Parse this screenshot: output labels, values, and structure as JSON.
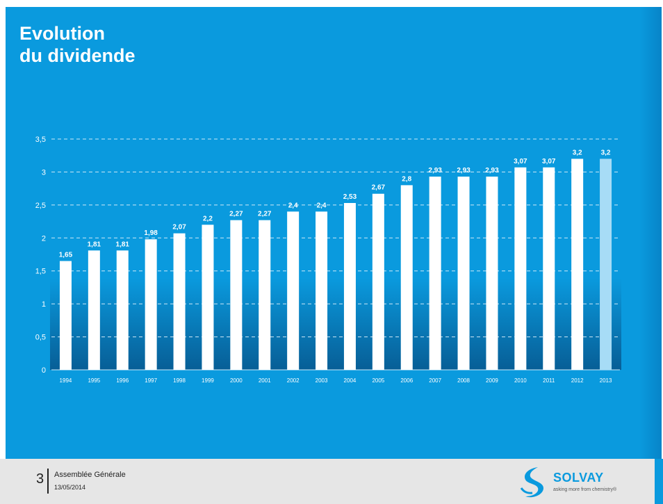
{
  "title": {
    "line1": "Evolution",
    "line2": "du dividende"
  },
  "colors": {
    "background": "#0a9ade",
    "bar": "#ffffff",
    "bar_highlight": "#a7dcf6",
    "gridline": "#cfe9f8",
    "text": "#ffffff",
    "footer_background": "#e6e6e6",
    "brand": "#0a9ade"
  },
  "chart_data": {
    "type": "bar",
    "title": "",
    "xlabel": "",
    "ylabel": "",
    "categories": [
      "1994",
      "1995",
      "1996",
      "1997",
      "1998",
      "1999",
      "2000",
      "2001",
      "2002",
      "2003",
      "2004",
      "2005",
      "2006",
      "2007",
      "2008",
      "2009",
      "2010",
      "2011",
      "2012",
      "2013"
    ],
    "values": [
      1.65,
      1.81,
      1.81,
      1.98,
      2.07,
      2.2,
      2.27,
      2.27,
      2.4,
      2.4,
      2.53,
      2.67,
      2.8,
      2.93,
      2.93,
      2.93,
      3.07,
      3.07,
      3.2,
      3.2
    ],
    "value_labels": [
      "1,65",
      "1,81",
      "1,81",
      "1,98",
      "2,07",
      "2,2",
      "2,27",
      "2,27",
      "2,4",
      "2,4",
      "2,53",
      "2,67",
      "2,8",
      "2,93",
      "2,93",
      "2,93",
      "3,07",
      "3,07",
      "3,2",
      "3,2"
    ],
    "highlighted_category": "2013",
    "ylim": [
      0,
      3.5
    ],
    "yticks": [
      0,
      0.5,
      1,
      1.5,
      2,
      2.5,
      3,
      3.5
    ],
    "ytick_labels": [
      "0",
      "0,5",
      "1",
      "1,5",
      "2",
      "2,5",
      "3",
      "3,5"
    ],
    "grid": true,
    "grid_style": "dashed",
    "legend": "none"
  },
  "footer": {
    "page_number": "3",
    "title": "Assemblée Générale",
    "date": "13/05/2014",
    "logo_name": "SOLVAY",
    "logo_tagline": "asking more from chemistry®"
  }
}
